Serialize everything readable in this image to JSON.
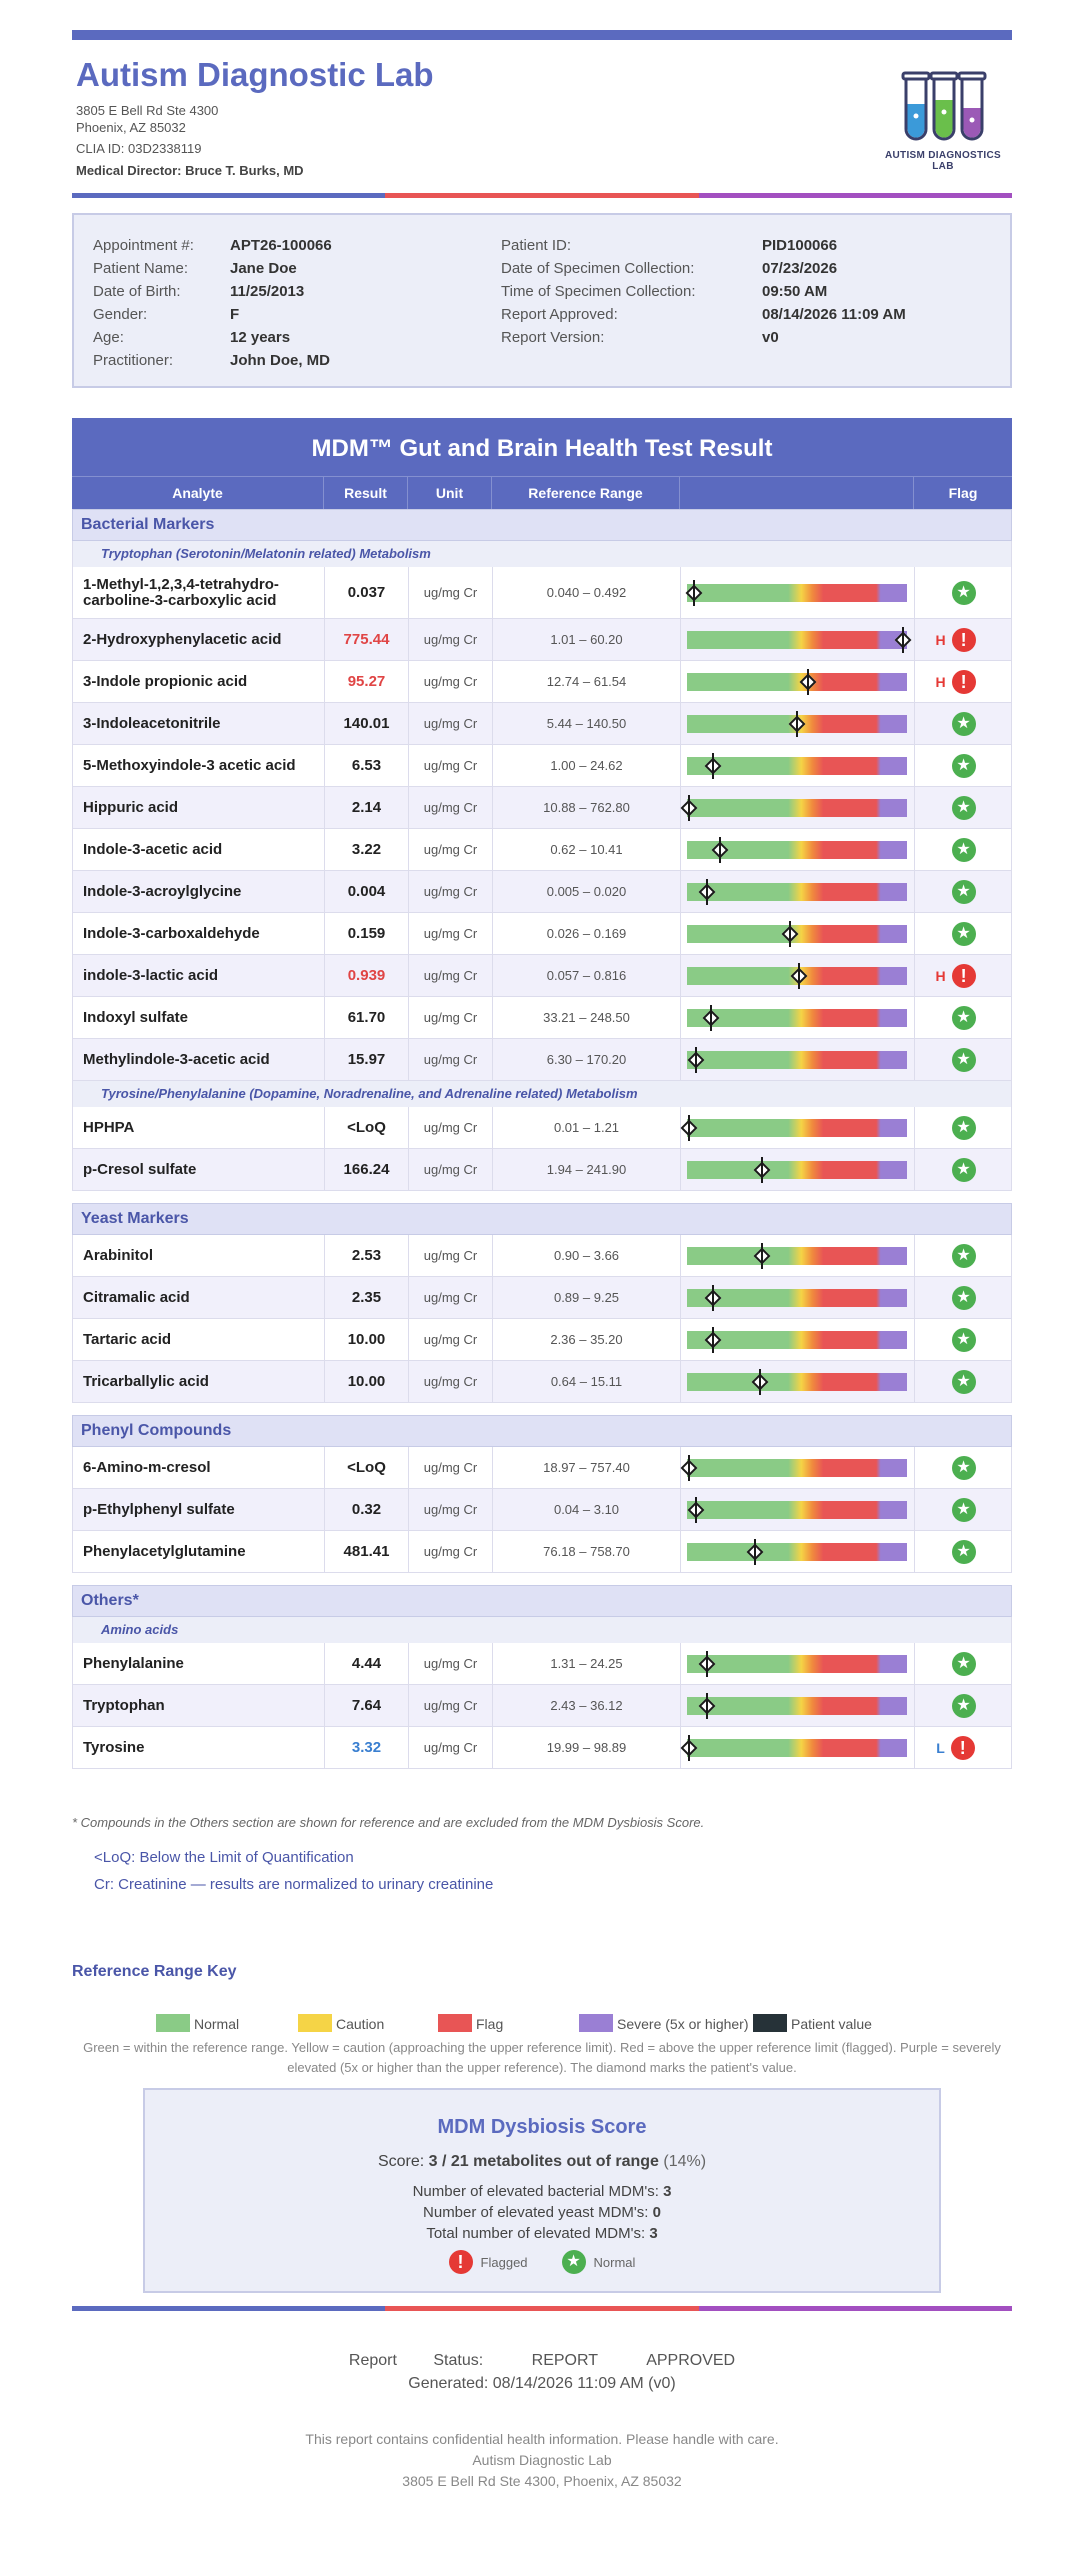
{
  "lab": {
    "name": "Autism Diagnostic Lab",
    "address1": "3805 E Bell Rd Ste 4300",
    "address2": "Phoenix, AZ 85032",
    "clia": "CLIA ID: 03D2338119",
    "medical_director": "Medical Director: Bruce T. Burks, MD",
    "logo_text": "AUTISM DIAGNOSTICS LAB"
  },
  "colors": {
    "brand": "#5b6abf",
    "normal": "#8acb86",
    "caution": "#f5d446",
    "flag": "#e85555",
    "severe": "#9a7fd4",
    "patient": "#263238"
  },
  "patient_info": {
    "left": [
      {
        "label": "Appointment #:",
        "value": "APT26-100066"
      },
      {
        "label": "Patient Name:",
        "value": "Jane Doe"
      },
      {
        "label": "Date of Birth:",
        "value": "11/25/2013"
      },
      {
        "label": "Gender:",
        "value": "F"
      },
      {
        "label": "Age:",
        "value": "12 years"
      },
      {
        "label": "Practitioner:",
        "value": "John Doe, MD"
      }
    ],
    "right": [
      {
        "label": "Patient ID:",
        "value": "PID100066"
      },
      {
        "label": "Date of Specimen Collection:",
        "value": "07/23/2026"
      },
      {
        "label": "Time of Specimen Collection:",
        "value": "09:50 AM"
      },
      {
        "label": "Report Approved:",
        "value": "08/14/2026 11:09 AM"
      },
      {
        "label": "Report Version:",
        "value": "v0"
      }
    ]
  },
  "table": {
    "title": "MDM™ Gut and Brain Health Test Result",
    "headers": {
      "analyte": "Analyte",
      "result": "Result",
      "unit": "Unit",
      "ref": "Reference Range",
      "flag": "Flag"
    }
  },
  "sections": [
    {
      "type": "section",
      "label": "Bacterial Markers"
    },
    {
      "type": "sub",
      "label": "Tryptophan (Serotonin/Melatonin related) Metabolism"
    },
    {
      "type": "row",
      "analyte": "1-Methyl-1,2,3,4-tetrahydro-carboline-3-carboxylic acid",
      "result": "0.037",
      "unit": "ug/mg Cr",
      "ref": "0.040 – 0.492",
      "level": 0.03,
      "flag": "normal"
    },
    {
      "type": "row",
      "analyte": "2-Hydroxyphenylacetic acid",
      "result": "775.44",
      "unit": "ug/mg Cr",
      "ref": "1.01 – 60.20",
      "level": 0.98,
      "flag": "H"
    },
    {
      "type": "row",
      "analyte": "3-Indole propionic acid",
      "result": "95.27",
      "unit": "ug/mg Cr",
      "ref": "12.74 – 61.54",
      "level": 0.55,
      "flag": "H"
    },
    {
      "type": "row",
      "analyte": "3-Indoleacetonitrile",
      "result": "140.01",
      "unit": "ug/mg Cr",
      "ref": "5.44 – 140.50",
      "level": 0.5,
      "flag": "normal"
    },
    {
      "type": "row",
      "analyte": "5-Methoxyindole-3 acetic acid",
      "result": "6.53",
      "unit": "ug/mg Cr",
      "ref": "1.00 – 24.62",
      "level": 0.12,
      "flag": "normal"
    },
    {
      "type": "row",
      "analyte": "Hippuric acid",
      "result": "2.14",
      "unit": "ug/mg Cr",
      "ref": "10.88 – 762.80",
      "level": 0.01,
      "flag": "normal"
    },
    {
      "type": "row",
      "analyte": "Indole-3-acetic acid",
      "result": "3.22",
      "unit": "ug/mg Cr",
      "ref": "0.62 – 10.41",
      "level": 0.15,
      "flag": "normal"
    },
    {
      "type": "row",
      "analyte": "Indole-3-acroylglycine",
      "result": "0.004",
      "unit": "ug/mg Cr",
      "ref": "0.005 – 0.020",
      "level": 0.09,
      "flag": "normal"
    },
    {
      "type": "row",
      "analyte": "Indole-3-carboxaldehyde",
      "result": "0.159",
      "unit": "ug/mg Cr",
      "ref": "0.026 – 0.169",
      "level": 0.47,
      "flag": "normal"
    },
    {
      "type": "row",
      "analyte": "indole-3-lactic acid",
      "result": "0.939",
      "unit": "ug/mg Cr",
      "ref": "0.057 – 0.816",
      "level": 0.51,
      "flag": "H"
    },
    {
      "type": "row",
      "analyte": "Indoxyl sulfate",
      "result": "61.70",
      "unit": "ug/mg Cr",
      "ref": "33.21 – 248.50",
      "level": 0.11,
      "flag": "normal"
    },
    {
      "type": "row",
      "analyte": "Methylindole-3-acetic acid",
      "result": "15.97",
      "unit": "ug/mg Cr",
      "ref": "6.30 – 170.20",
      "level": 0.04,
      "flag": "normal"
    },
    {
      "type": "sub",
      "label": "Tyrosine/Phenylalanine (Dopamine, Noradrenaline, and Adrenaline related) Metabolism"
    },
    {
      "type": "row",
      "analyte": "HPHPA",
      "result": "<LoQ",
      "unit": "ug/mg Cr",
      "ref": "0.01 – 1.21",
      "level": 0.01,
      "flag": "normal"
    },
    {
      "type": "row",
      "analyte": "p-Cresol sulfate",
      "result": "166.24",
      "unit": "ug/mg Cr",
      "ref": "1.94 – 241.90",
      "level": 0.34,
      "flag": "normal"
    },
    {
      "type": "section",
      "label": "Yeast Markers"
    },
    {
      "type": "row",
      "analyte": "Arabinitol",
      "result": "2.53",
      "unit": "ug/mg Cr",
      "ref": "0.90 – 3.66",
      "level": 0.34,
      "flag": "normal"
    },
    {
      "type": "row",
      "analyte": "Citramalic acid",
      "result": "2.35",
      "unit": "ug/mg Cr",
      "ref": "0.89 – 9.25",
      "level": 0.12,
      "flag": "normal"
    },
    {
      "type": "row",
      "analyte": "Tartaric acid",
      "result": "10.00",
      "unit": "ug/mg Cr",
      "ref": "2.36 – 35.20",
      "level": 0.12,
      "flag": "normal"
    },
    {
      "type": "row",
      "analyte": "Tricarballylic acid",
      "result": "10.00",
      "unit": "ug/mg Cr",
      "ref": "0.64 – 15.11",
      "level": 0.33,
      "flag": "normal"
    },
    {
      "type": "section",
      "label": "Phenyl Compounds"
    },
    {
      "type": "row",
      "analyte": "6-Amino-m-cresol",
      "result": "<LoQ",
      "unit": "ug/mg Cr",
      "ref": "18.97 – 757.40",
      "level": 0.01,
      "flag": "normal"
    },
    {
      "type": "row",
      "analyte": "p-Ethylphenyl sulfate",
      "result": "0.32",
      "unit": "ug/mg Cr",
      "ref": "0.04 – 3.10",
      "level": 0.04,
      "flag": "normal"
    },
    {
      "type": "row",
      "analyte": "Phenylacetylglutamine",
      "result": "481.41",
      "unit": "ug/mg Cr",
      "ref": "76.18 – 758.70",
      "level": 0.31,
      "flag": "normal"
    },
    {
      "type": "section",
      "label": "Others*"
    },
    {
      "type": "sub",
      "label": "Amino acids"
    },
    {
      "type": "row",
      "analyte": "Phenylalanine",
      "result": "4.44",
      "unit": "ug/mg Cr",
      "ref": "1.31 – 24.25",
      "level": 0.09,
      "flag": "normal"
    },
    {
      "type": "row",
      "analyte": "Tryptophan",
      "result": "7.64",
      "unit": "ug/mg Cr",
      "ref": "2.43 – 36.12",
      "level": 0.09,
      "flag": "normal"
    },
    {
      "type": "row",
      "analyte": "Tyrosine",
      "result": "3.32",
      "unit": "ug/mg Cr",
      "ref": "19.99 – 98.89",
      "level": 0.01,
      "flag": "L"
    }
  ],
  "notes": {
    "others": "* Compounds in the Others section are shown for reference and are excluded from the MDM Dysbiosis Score.",
    "loq": "<LoQ: Below the Limit of Quantification",
    "cr": "Cr: Creatinine — results are normalized to urinary creatinine"
  },
  "range_key": {
    "title": "Reference Range Key",
    "items": [
      {
        "label": "Normal",
        "color": "#8acb86"
      },
      {
        "label": "Caution",
        "color": "#f5d446"
      },
      {
        "label": "Flag",
        "color": "#e85555"
      },
      {
        "label": "Severe (5x or higher)",
        "color": "#9a7fd4"
      },
      {
        "label": "Patient value",
        "color": "#263238"
      }
    ],
    "description": "Green = within the reference range. Yellow = caution (approaching the upper reference limit). Red = above the upper reference limit (flagged). Purple = severely elevated (5x or higher than the upper reference). The diamond marks the patient's value."
  },
  "score": {
    "title": "MDM Dysbiosis Score",
    "label": "Score:",
    "value": "3 / 21 metabolites out of range",
    "percent": "(14%)",
    "bacterial_label": "Number of elevated bacterial MDM's:",
    "bacterial": "3",
    "yeast_label": "Number of elevated yeast MDM's:",
    "yeast": "0",
    "total_label": "Total number of elevated MDM's:",
    "total": "3",
    "flagged_label": "Flagged",
    "normal_label": "Normal"
  },
  "footer": {
    "status1": "Report",
    "status2": "Status:",
    "status3": "REPORT",
    "status4": "APPROVED",
    "generated": "Generated: 08/14/2026 11:09 AM (v0)",
    "confidential": "This report contains confidential health information. Please handle with care.",
    "lab_name": "Autism Diagnostic Lab",
    "address": "3805 E Bell Rd Ste 4300, Phoenix, AZ 85032"
  }
}
